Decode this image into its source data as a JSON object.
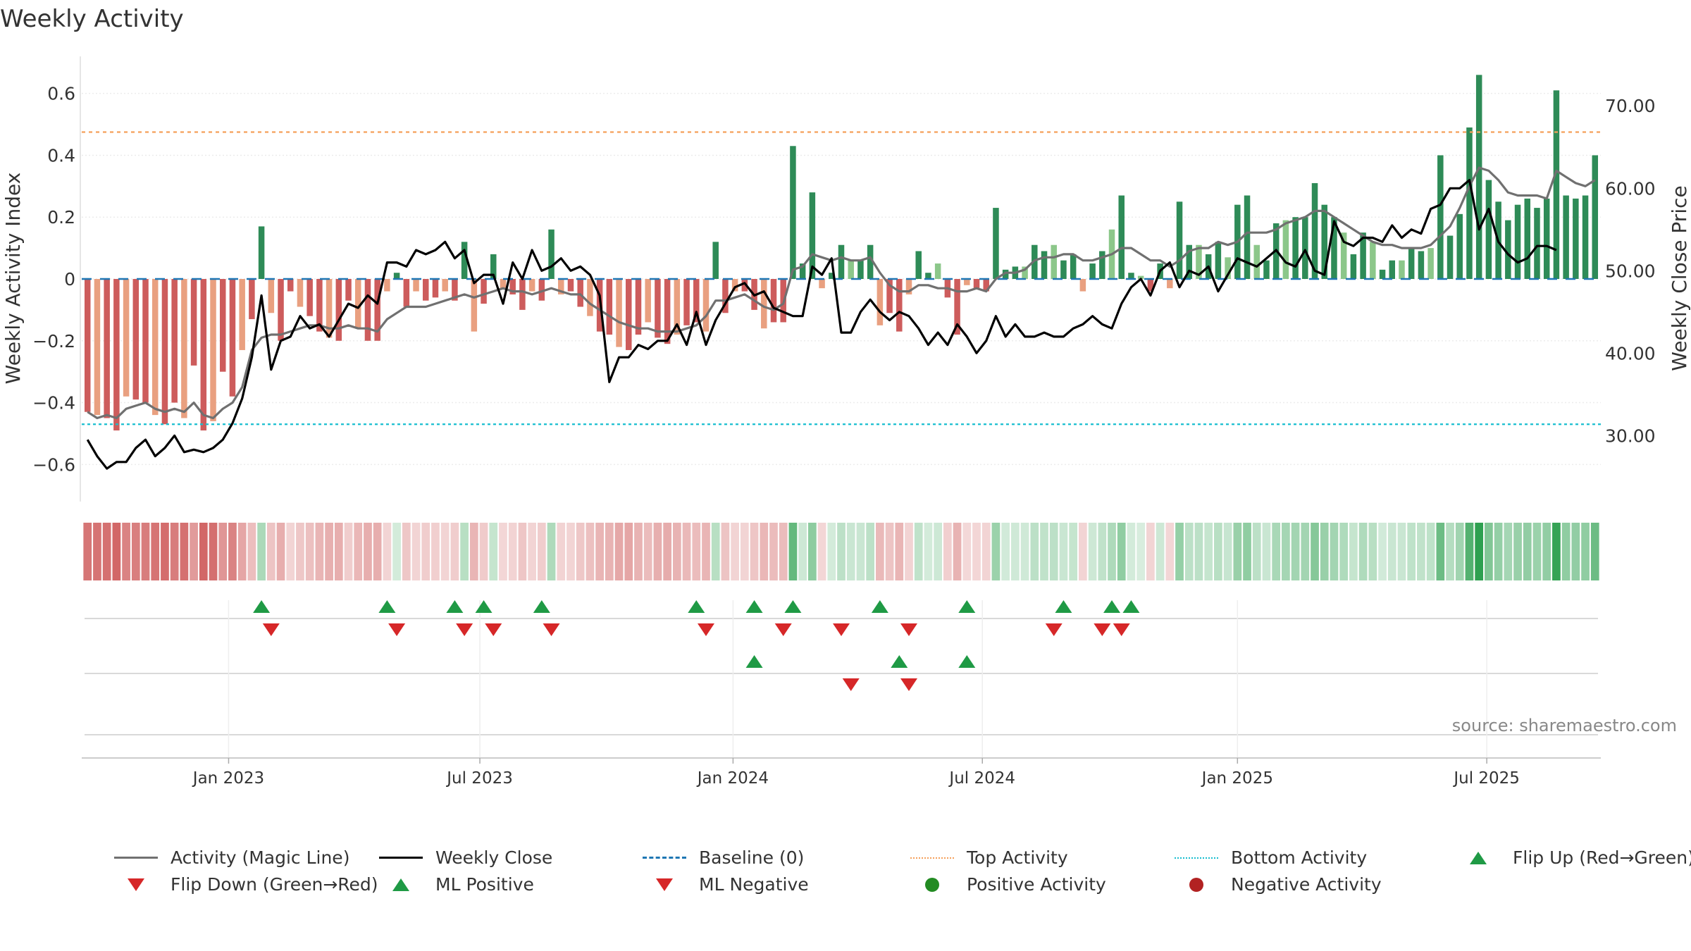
{
  "chart_data": {
    "type": "bar",
    "title": "Weekly Activity",
    "ylabel_left": "Weekly Activity Index",
    "ylabel_right": "Weekly Close Price",
    "ylim_left": [
      -0.72,
      0.72
    ],
    "ylim_right": [
      22,
      76
    ],
    "left_ticks": [
      {
        "value": 0.6,
        "label": "0.6"
      },
      {
        "value": 0.4,
        "label": "0.4"
      },
      {
        "value": 0.2,
        "label": "0.2"
      },
      {
        "value": 0,
        "label": "0"
      },
      {
        "value": -0.2,
        "label": "−0.2"
      },
      {
        "value": -0.4,
        "label": "−0.4"
      },
      {
        "value": -0.6,
        "label": "−0.6"
      }
    ],
    "right_ticks": [
      {
        "value": 70,
        "label": "70.00"
      },
      {
        "value": 60,
        "label": "60.00"
      },
      {
        "value": 50,
        "label": "50.00"
      },
      {
        "value": 40,
        "label": "40.00"
      },
      {
        "value": 30,
        "label": "30.00"
      }
    ],
    "x_ticks": [
      {
        "week": 14.6,
        "label": "Jan 2023"
      },
      {
        "week": 40.6,
        "label": "Jul 2023"
      },
      {
        "week": 66.8,
        "label": "Jan 2024"
      },
      {
        "week": 92.6,
        "label": "Jul 2024"
      },
      {
        "week": 119.0,
        "label": "Jan 2025"
      },
      {
        "week": 144.8,
        "label": "Jul 2025"
      }
    ],
    "x_range_weeks": [
      -0.6,
      156.6
    ],
    "top_activity": 0.475,
    "bottom_activity": -0.47,
    "baseline": 0,
    "activity": [
      -0.43,
      -0.44,
      -0.45,
      -0.49,
      -0.38,
      -0.39,
      -0.4,
      -0.44,
      -0.47,
      -0.4,
      -0.45,
      -0.28,
      -0.49,
      -0.46,
      -0.3,
      -0.38,
      -0.23,
      -0.13,
      0.17,
      -0.11,
      -0.2,
      -0.04,
      -0.09,
      -0.12,
      -0.17,
      -0.19,
      -0.2,
      -0.07,
      -0.16,
      -0.2,
      -0.2,
      -0.04,
      0.02,
      -0.09,
      -0.04,
      -0.07,
      -0.06,
      -0.04,
      -0.07,
      0.12,
      -0.17,
      -0.08,
      0.08,
      -0.03,
      -0.05,
      -0.1,
      -0.04,
      -0.07,
      0.16,
      -0.05,
      -0.04,
      -0.09,
      -0.12,
      -0.17,
      -0.18,
      -0.22,
      -0.23,
      -0.18,
      -0.14,
      -0.19,
      -0.21,
      -0.18,
      -0.15,
      -0.14,
      -0.17,
      0.12,
      -0.11,
      -0.04,
      -0.04,
      -0.1,
      -0.16,
      -0.14,
      -0.14,
      0.43,
      0.05,
      0.28,
      -0.03,
      0.02,
      0.11,
      0.06,
      0.06,
      0.11,
      -0.15,
      -0.11,
      -0.17,
      -0.05,
      0.09,
      0.02,
      0.05,
      -0.06,
      -0.18,
      -0.02,
      -0.03,
      -0.04,
      0.23,
      0.03,
      0.04,
      0.04,
      0.11,
      0.09,
      0.11,
      0.06,
      0.08,
      -0.04,
      0.05,
      0.09,
      0.16,
      0.27,
      0.02,
      0.01,
      -0.04,
      0.05,
      -0.03,
      0.25,
      0.11,
      0.11,
      0.08,
      0.12,
      0.07,
      0.24,
      0.27,
      0.11,
      0.06,
      0.18,
      0.19,
      0.2,
      0.2,
      0.31,
      0.24,
      0.2,
      0.15,
      0.08,
      0.15,
      0.12,
      0.03,
      0.06,
      0.06,
      0.1,
      0.09,
      0.1,
      0.4,
      0.14,
      0.21,
      0.49,
      0.66,
      0.32,
      0.25,
      0.19,
      0.24,
      0.26,
      0.23,
      0.26,
      0.61,
      0.27,
      0.26,
      0.27,
      0.4
    ],
    "magic_line": [
      -0.43,
      -0.45,
      -0.44,
      -0.45,
      -0.42,
      -0.41,
      -0.4,
      -0.42,
      -0.43,
      -0.42,
      -0.43,
      -0.4,
      -0.44,
      -0.45,
      -0.42,
      -0.4,
      -0.35,
      -0.23,
      -0.19,
      -0.18,
      -0.18,
      -0.17,
      -0.16,
      -0.15,
      -0.15,
      -0.16,
      -0.16,
      -0.15,
      -0.16,
      -0.16,
      -0.17,
      -0.13,
      -0.11,
      -0.09,
      -0.09,
      -0.09,
      -0.08,
      -0.07,
      -0.06,
      -0.05,
      -0.06,
      -0.05,
      -0.04,
      -0.03,
      -0.04,
      -0.04,
      -0.05,
      -0.04,
      -0.03,
      -0.04,
      -0.05,
      -0.05,
      -0.08,
      -0.1,
      -0.12,
      -0.14,
      -0.15,
      -0.16,
      -0.16,
      -0.17,
      -0.17,
      -0.17,
      -0.16,
      -0.15,
      -0.12,
      -0.07,
      -0.07,
      -0.06,
      -0.05,
      -0.07,
      -0.09,
      -0.1,
      -0.08,
      0.03,
      0.04,
      0.08,
      0.07,
      0.06,
      0.07,
      0.06,
      0.06,
      0.07,
      0.02,
      -0.02,
      -0.04,
      -0.04,
      -0.02,
      -0.02,
      -0.03,
      -0.03,
      -0.04,
      -0.04,
      -0.03,
      -0.04,
      0.0,
      0.02,
      0.02,
      0.03,
      0.06,
      0.07,
      0.07,
      0.08,
      0.08,
      0.06,
      0.06,
      0.07,
      0.08,
      0.1,
      0.1,
      0.08,
      0.06,
      0.06,
      0.04,
      0.06,
      0.09,
      0.1,
      0.1,
      0.12,
      0.11,
      0.12,
      0.15,
      0.15,
      0.15,
      0.16,
      0.18,
      0.19,
      0.2,
      0.22,
      0.22,
      0.2,
      0.18,
      0.16,
      0.14,
      0.12,
      0.11,
      0.11,
      0.1,
      0.1,
      0.1,
      0.11,
      0.14,
      0.17,
      0.23,
      0.3,
      0.36,
      0.35,
      0.32,
      0.28,
      0.27,
      0.27,
      0.27,
      0.26,
      0.35,
      0.33,
      0.31,
      0.3,
      0.32
    ],
    "close": [
      29.5,
      27.5,
      26.0,
      26.8,
      26.8,
      28.5,
      29.5,
      27.5,
      28.5,
      30.0,
      28.0,
      28.3,
      28.0,
      28.5,
      29.5,
      31.5,
      34.5,
      39.5,
      47.0,
      38.0,
      41.5,
      42.0,
      44.5,
      43.0,
      43.5,
      42.0,
      44.0,
      46.0,
      45.5,
      47.0,
      46.0,
      51.0,
      51.0,
      50.5,
      52.5,
      52.0,
      52.5,
      53.5,
      51.5,
      52.5,
      48.5,
      49.5,
      49.5,
      46.0,
      51.0,
      49.0,
      52.5,
      50.0,
      50.5,
      51.5,
      50.0,
      50.5,
      49.5,
      47.0,
      36.5,
      39.5,
      39.5,
      41.0,
      40.5,
      41.5,
      41.5,
      43.5,
      41.0,
      45.0,
      41.0,
      44.0,
      46.0,
      48.0,
      48.5,
      47.0,
      47.5,
      45.5,
      45.0,
      44.5,
      44.5,
      50.5,
      49.5,
      51.5,
      42.5,
      42.5,
      45.0,
      46.5,
      45.0,
      44.0,
      45.0,
      44.5,
      43.0,
      41.0,
      42.5,
      41.0,
      43.5,
      42.0,
      40.0,
      41.5,
      44.5,
      42.0,
      43.5,
      42.0,
      42.0,
      42.5,
      42.0,
      42.0,
      43.0,
      43.5,
      44.5,
      43.5,
      43.0,
      46.0,
      48.0,
      49.0,
      47.0,
      50.0,
      51.0,
      48.0,
      50.0,
      49.5,
      50.5,
      47.5,
      49.5,
      51.5,
      51.0,
      50.5,
      51.5,
      52.5,
      51.0,
      50.5,
      52.5,
      50.0,
      49.5,
      56.0,
      53.5,
      53.0,
      54.0,
      54.0,
      53.5,
      55.5,
      54.0,
      55.0,
      54.5,
      57.5,
      58.0,
      60.0,
      60.0,
      61.0,
      55.0,
      57.5,
      53.5,
      52.0,
      51.0,
      51.5,
      53.0,
      53.0,
      52.5
    ],
    "flip_up": [
      18,
      31,
      38,
      41,
      47,
      63,
      69,
      73,
      82,
      91,
      101,
      106,
      108
    ],
    "flip_down": [
      19,
      32,
      39,
      42,
      48,
      64,
      72,
      78,
      85,
      100,
      105,
      107
    ],
    "ml_positive": [
      69,
      84,
      91
    ],
    "ml_negative": [
      79,
      85
    ],
    "source_label": "source: sharemaestro.com",
    "legend": [
      {
        "label": "Activity (Magic Line)",
        "kind": "line",
        "color": "#707070"
      },
      {
        "label": "Weekly Close",
        "kind": "line",
        "color": "#000000"
      },
      {
        "label": "Baseline (0)",
        "kind": "dash",
        "color": "#1f77b4"
      },
      {
        "label": "Top Activity",
        "kind": "dot-line",
        "color": "#f5a05a"
      },
      {
        "label": "Bottom Activity",
        "kind": "dot-line",
        "color": "#17becf"
      },
      {
        "label": "Flip Up (Red→Green)",
        "kind": "tri-up",
        "color": "#1f9a45"
      },
      {
        "label": "Flip Down (Green→Red)",
        "kind": "tri-down",
        "color": "#d62728"
      },
      {
        "label": "ML Positive",
        "kind": "tri-up",
        "color": "#1f9a45"
      },
      {
        "label": "ML Negative",
        "kind": "tri-down",
        "color": "#d62728"
      },
      {
        "label": "Positive Activity",
        "kind": "dot",
        "color": "#228b22"
      },
      {
        "label": "Negative Activity",
        "kind": "dot",
        "color": "#b22222"
      }
    ],
    "colors": {
      "pos_dark": "#2e8b57",
      "pos_light": "#8cc78a",
      "neg_dark": "#cd5c5c",
      "neg_light": "#e9a080",
      "magic": "#707070",
      "close": "#000000",
      "top": "#f5a05a",
      "bottom": "#17becf",
      "baseline": "#1f77b4",
      "up": "#1f9a45",
      "down": "#d62728"
    }
  }
}
